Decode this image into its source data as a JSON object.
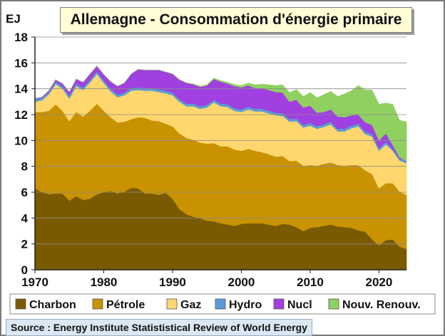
{
  "chart_data": {
    "type": "area",
    "stacked": true,
    "title": "Allemagne - Consommation d'énergie primaire",
    "ylabel": "EJ",
    "xlabel": "",
    "xlim": [
      1970,
      2024
    ],
    "ylim": [
      0,
      18
    ],
    "x_ticks": [
      1970,
      1980,
      1990,
      2000,
      2010,
      2020
    ],
    "y_ticks": [
      0,
      2,
      4,
      6,
      8,
      10,
      12,
      14,
      16,
      18
    ],
    "x": [
      1970,
      1971,
      1972,
      1973,
      1974,
      1975,
      1976,
      1977,
      1978,
      1979,
      1980,
      1981,
      1982,
      1983,
      1984,
      1985,
      1986,
      1987,
      1988,
      1989,
      1990,
      1991,
      1992,
      1993,
      1994,
      1995,
      1996,
      1997,
      1998,
      1999,
      2000,
      2001,
      2002,
      2003,
      2004,
      2005,
      2006,
      2007,
      2008,
      2009,
      2010,
      2011,
      2012,
      2013,
      2014,
      2015,
      2016,
      2017,
      2018,
      2019,
      2020,
      2021,
      2022,
      2023,
      2024
    ],
    "series": [
      {
        "name": "Charbon",
        "color": "#7a5a00",
        "values": [
          6.3,
          6.0,
          5.85,
          5.9,
          5.9,
          5.35,
          5.7,
          5.4,
          5.5,
          5.85,
          6.0,
          6.1,
          5.9,
          6.05,
          6.35,
          6.3,
          5.9,
          5.9,
          5.8,
          5.95,
          5.5,
          4.7,
          4.3,
          4.1,
          4.0,
          3.8,
          3.75,
          3.6,
          3.5,
          3.4,
          3.55,
          3.6,
          3.6,
          3.6,
          3.5,
          3.4,
          3.55,
          3.5,
          3.3,
          3.0,
          3.25,
          3.3,
          3.4,
          3.5,
          3.35,
          3.3,
          3.25,
          3.05,
          2.95,
          2.35,
          1.9,
          2.3,
          2.35,
          1.8,
          1.6
        ]
      },
      {
        "name": "Pétrole",
        "color": "#c89200",
        "values": [
          5.9,
          6.2,
          6.45,
          6.9,
          6.4,
          6.15,
          6.5,
          6.45,
          6.8,
          7.0,
          6.3,
          5.7,
          5.5,
          5.4,
          5.3,
          5.5,
          5.85,
          5.65,
          5.7,
          5.35,
          5.6,
          5.85,
          5.9,
          5.95,
          5.85,
          5.95,
          6.05,
          5.95,
          6.05,
          5.9,
          5.65,
          5.75,
          5.6,
          5.5,
          5.45,
          5.35,
          5.25,
          4.9,
          5.15,
          5.05,
          4.85,
          4.75,
          4.8,
          4.8,
          4.75,
          4.75,
          4.85,
          5.05,
          4.75,
          5.05,
          4.4,
          4.4,
          4.35,
          4.25,
          4.2
        ]
      },
      {
        "name": "Gaz",
        "color": "#ffd76e",
        "values": [
          0.8,
          0.9,
          1.25,
          1.55,
          1.7,
          1.75,
          2.0,
          2.05,
          2.2,
          2.3,
          2.15,
          2.0,
          1.95,
          2.05,
          2.2,
          2.1,
          2.1,
          2.3,
          2.25,
          2.35,
          2.4,
          2.45,
          2.45,
          2.6,
          2.6,
          2.8,
          3.15,
          3.1,
          3.05,
          3.0,
          3.0,
          3.05,
          3.05,
          3.15,
          3.15,
          3.2,
          3.1,
          3.05,
          3.05,
          2.95,
          3.05,
          2.85,
          2.85,
          2.95,
          2.6,
          2.65,
          2.85,
          3.0,
          2.8,
          2.9,
          2.9,
          3.0,
          2.5,
          2.4,
          2.45
        ]
      },
      {
        "name": "Hydro",
        "color": "#5b9bd5",
        "values": [
          0.2,
          0.2,
          0.2,
          0.2,
          0.2,
          0.2,
          0.2,
          0.2,
          0.2,
          0.2,
          0.2,
          0.2,
          0.2,
          0.2,
          0.2,
          0.2,
          0.2,
          0.2,
          0.2,
          0.2,
          0.2,
          0.2,
          0.2,
          0.2,
          0.2,
          0.2,
          0.2,
          0.2,
          0.2,
          0.2,
          0.2,
          0.2,
          0.2,
          0.2,
          0.2,
          0.2,
          0.2,
          0.2,
          0.2,
          0.2,
          0.2,
          0.2,
          0.2,
          0.2,
          0.2,
          0.2,
          0.2,
          0.2,
          0.2,
          0.2,
          0.2,
          0.2,
          0.15,
          0.15,
          0.15
        ]
      },
      {
        "name": "Nucl",
        "color": "#a040e0",
        "values": [
          0.05,
          0.05,
          0.1,
          0.15,
          0.2,
          0.3,
          0.35,
          0.4,
          0.45,
          0.4,
          0.45,
          0.55,
          0.65,
          0.75,
          1.1,
          1.4,
          1.4,
          1.4,
          1.5,
          1.45,
          1.45,
          1.5,
          1.6,
          1.5,
          1.5,
          1.5,
          1.6,
          1.7,
          1.6,
          1.7,
          1.7,
          1.65,
          1.6,
          1.6,
          1.6,
          1.6,
          1.6,
          1.35,
          1.45,
          1.35,
          1.35,
          1.05,
          0.95,
          0.95,
          0.95,
          0.9,
          0.8,
          0.7,
          0.7,
          0.7,
          0.6,
          0.65,
          0.3,
          0.1,
          0.0
        ]
      },
      {
        "name": "Nouv. Renouv.",
        "color": "#90d060",
        "values": [
          0.0,
          0.0,
          0.0,
          0.0,
          0.0,
          0.0,
          0.0,
          0.0,
          0.0,
          0.0,
          0.0,
          0.0,
          0.0,
          0.0,
          0.0,
          0.0,
          0.0,
          0.0,
          0.0,
          0.0,
          0.0,
          0.0,
          0.02,
          0.03,
          0.05,
          0.06,
          0.07,
          0.08,
          0.1,
          0.12,
          0.15,
          0.18,
          0.25,
          0.3,
          0.4,
          0.5,
          0.6,
          0.7,
          0.8,
          0.85,
          1.0,
          1.15,
          1.35,
          1.4,
          1.55,
          1.8,
          1.9,
          2.25,
          2.5,
          2.7,
          2.8,
          2.35,
          3.15,
          2.85,
          3.05
        ]
      }
    ],
    "legend": [
      "Charbon",
      "Pétrole",
      "Gaz",
      "Hydro",
      "Nucl",
      "Nouv. Renouv."
    ],
    "legend_position": "bottom",
    "source": "Source : Energy Institute Statististical Review of World Energy"
  }
}
